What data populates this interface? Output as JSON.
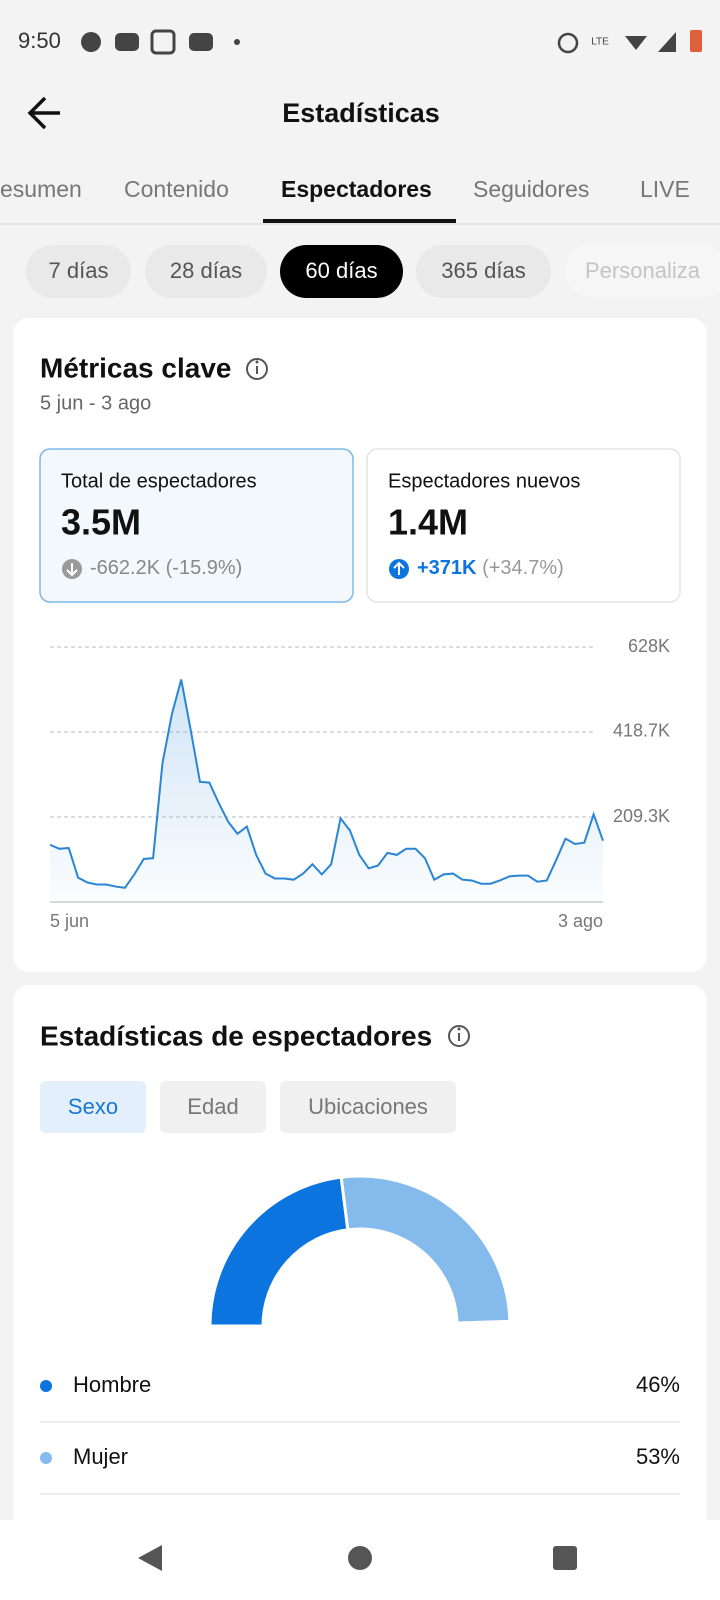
{
  "status_bar": {
    "time": "9:50"
  },
  "header": {
    "title": "Estadísticas"
  },
  "tabs": [
    "esumen",
    "Contenido",
    "Espectadores",
    "Seguidores",
    "LIVE"
  ],
  "periods": [
    "7 días",
    "28 días",
    "60 días",
    "365 días",
    "Personaliza"
  ],
  "key_metrics": {
    "title": "Métricas clave",
    "date_range": "5 jun - 3 ago",
    "cards": [
      {
        "label": "Total de espectadores",
        "value": "3.5M",
        "change": "-662.2K",
        "change_pct": "(-15.9%)"
      },
      {
        "label": "Espectadores nuevos",
        "value": "1.4M",
        "change": "+371K",
        "change_pct": "(+34.7%)"
      }
    ]
  },
  "chart_data": [
    {
      "type": "line",
      "x": [
        "5 jun",
        null,
        null,
        null,
        null,
        null,
        null,
        null,
        null,
        null,
        null,
        null,
        null,
        null,
        null,
        null,
        null,
        null,
        null,
        null,
        null,
        null,
        null,
        null,
        null,
        null,
        null,
        null,
        null,
        null,
        null,
        null,
        null,
        null,
        null,
        null,
        null,
        null,
        null,
        null,
        null,
        null,
        null,
        null,
        null,
        null,
        null,
        null,
        null,
        null,
        null,
        null,
        null,
        null,
        null,
        null,
        null,
        null,
        null,
        "3 ago"
      ],
      "series": [
        {
          "color": "#2a86d4",
          "values": [
            141000,
            131000,
            133000,
            60000,
            48000,
            43000,
            43000,
            38000,
            35000,
            68000,
            106000,
            108000,
            342000,
            462000,
            548000,
            425000,
            296000,
            294000,
            244000,
            198000,
            168000,
            186000,
            116000,
            70000,
            58000,
            58000,
            55000,
            70000,
            93000,
            68000,
            93000,
            206000,
            176000,
            116000,
            83000,
            90000,
            121000,
            116000,
            131000,
            131000,
            108000,
            55000,
            68000,
            70000,
            55000,
            53000,
            45000,
            45000,
            53000,
            63000,
            65000,
            65000,
            50000,
            53000,
            103000,
            156000,
            143000,
            146000,
            216000,
            151000
          ]
        }
      ],
      "ylim": [
        0,
        628000
      ],
      "yticks": [
        {
          "value": 209300,
          "label": "209.3K"
        },
        {
          "value": 418700,
          "label": "418.7K"
        },
        {
          "value": 628000,
          "label": "628K"
        }
      ],
      "grid": true
    },
    {
      "type": "pie",
      "categories": [
        "Hombre",
        "Mujer"
      ],
      "values": [
        46,
        53
      ],
      "value_labels": [
        "46%",
        "53%"
      ],
      "colors": [
        "#0b74de",
        "#85bbec"
      ]
    }
  ],
  "audience": {
    "title": "Estadísticas de espectadores",
    "filters": [
      "Sexo",
      "Edad",
      "Ubicaciones"
    ]
  }
}
